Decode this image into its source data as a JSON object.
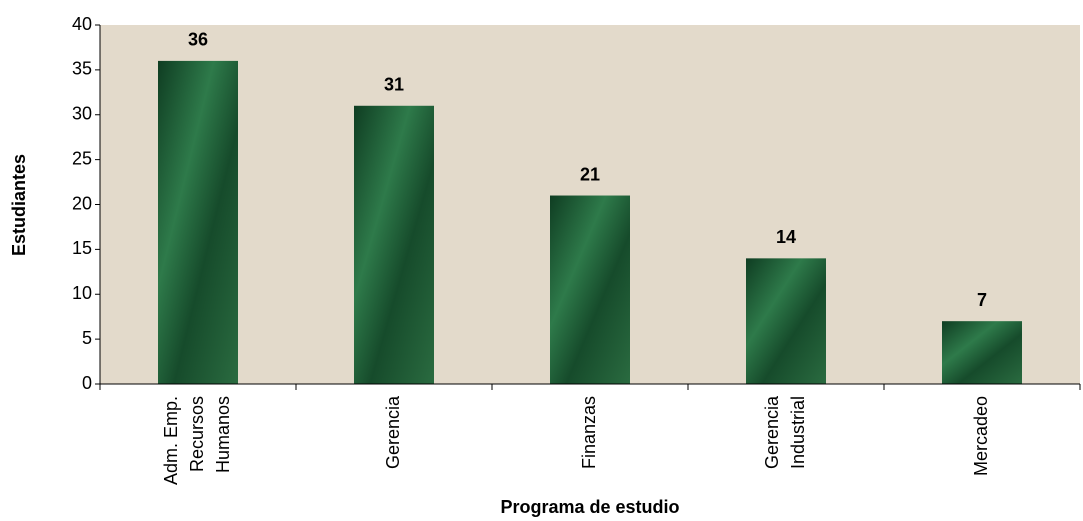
{
  "chart_data": {
    "type": "bar",
    "y_label": "Estudiantes",
    "x_label": "Programa de estudio",
    "categories": [
      [
        "Adm. Emp.",
        "Recursos",
        "Humanos"
      ],
      [
        "Gerencia"
      ],
      [
        "Finanzas"
      ],
      [
        "Gerencia",
        "Industrial"
      ],
      [
        "Mercadeo"
      ]
    ],
    "values": [
      36,
      31,
      21,
      14,
      7
    ],
    "color": "#1f5a34",
    "background": "#e3dacb",
    "ylim": [
      0,
      40
    ],
    "yticks": [
      0,
      5,
      10,
      15,
      20,
      25,
      30,
      35,
      40
    ]
  }
}
